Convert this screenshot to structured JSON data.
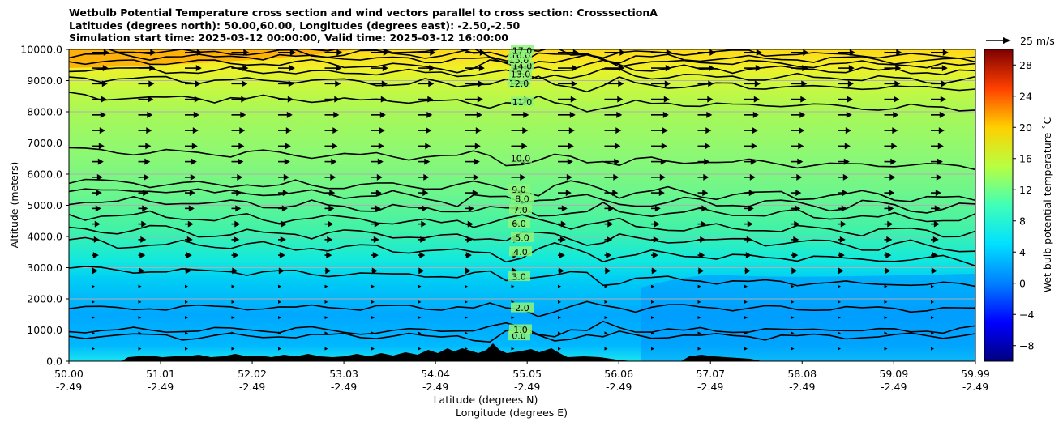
{
  "chart_data": {
    "type": "heatmap",
    "title_lines": [
      "Wetbulb Potential Temperature cross section and wind vectors parallel to cross section: CrosssectionA",
      "Latitudes (degrees north): 50.00,60.00, Longitudes (degrees east): -2.50,-2.50",
      "Simulation start time: 2025-03-12 00:00:00, Valid time: 2025-03-12 16:00:00"
    ],
    "ylabel": "Altitude (meters)",
    "xlabel_1": "Latitude (degrees N)",
    "xlabel_2": "Longitude (degrees E)",
    "ylim": [
      0,
      10000
    ],
    "xlim": [
      50.0,
      59.99
    ],
    "y_ticks": [
      "0.0",
      "1000.0",
      "2000.0",
      "3000.0",
      "4000.0",
      "5000.0",
      "6000.0",
      "7000.0",
      "8000.0",
      "9000.0",
      "10000.0"
    ],
    "y_tick_values": [
      0,
      1000,
      2000,
      3000,
      4000,
      5000,
      6000,
      7000,
      8000,
      9000,
      10000
    ],
    "x_ticks_lat": [
      "50.00",
      "51.01",
      "52.02",
      "53.03",
      "54.04",
      "55.05",
      "56.06",
      "57.07",
      "58.08",
      "59.09",
      "59.99"
    ],
    "x_tick_values": [
      50.0,
      51.01,
      52.02,
      53.03,
      54.04,
      55.05,
      56.06,
      57.07,
      58.08,
      59.09,
      59.99
    ],
    "x_ticks_lon": [
      "-2.49",
      "-2.49",
      "-2.49",
      "-2.49",
      "-2.49",
      "-2.49",
      "-2.49",
      "-2.49",
      "-2.49",
      "-2.49",
      "-2.49"
    ],
    "grid": "horizontal",
    "colorbar": {
      "label": "Wet bulb potential temperature ˚C",
      "range": [
        -10,
        30
      ],
      "ticks": [
        "−8",
        "−4",
        "0",
        "4",
        "8",
        "12",
        "16",
        "20",
        "24",
        "28"
      ],
      "tick_values": [
        -8,
        -4,
        0,
        4,
        8,
        12,
        16,
        20,
        24,
        28
      ]
    },
    "quiver_key": "25 m/s",
    "contour_levels": [
      {
        "label": "0.0",
        "value": 0.0,
        "altitude": 800
      },
      {
        "label": "1.0",
        "value": 1.0,
        "altitude": 1000
      },
      {
        "label": "2.0",
        "value": 2.0,
        "altitude": 1700
      },
      {
        "label": "3.0",
        "value": 3.0,
        "altitude": 2700
      },
      {
        "label": "4.0",
        "value": 4.0,
        "altitude": 3500
      },
      {
        "label": "5.0",
        "value": 5.0,
        "altitude": 3950
      },
      {
        "label": "6.0",
        "value": 6.0,
        "altitude": 4400
      },
      {
        "label": "7.0",
        "value": 7.0,
        "altitude": 4850
      },
      {
        "label": "8.0",
        "value": 8.0,
        "altitude": 5200
      },
      {
        "label": "9.0",
        "value": 9.0,
        "altitude": 5500
      },
      {
        "label": "10.0",
        "value": 10.0,
        "altitude": 6500
      },
      {
        "label": "11.0",
        "value": 11.0,
        "altitude": 8300
      },
      {
        "label": "12.0",
        "value": 12.0,
        "altitude": 8900
      },
      {
        "label": "13.0",
        "value": 13.0,
        "altitude": 9200
      },
      {
        "label": "14.0",
        "value": 14.0,
        "altitude": 9450
      },
      {
        "label": "15.0",
        "value": 15.0,
        "altitude": 9650
      },
      {
        "label": "16.0",
        "value": 16.0,
        "altitude": 9800
      },
      {
        "label": "17.0",
        "value": 17.0,
        "altitude": 9950
      }
    ]
  }
}
